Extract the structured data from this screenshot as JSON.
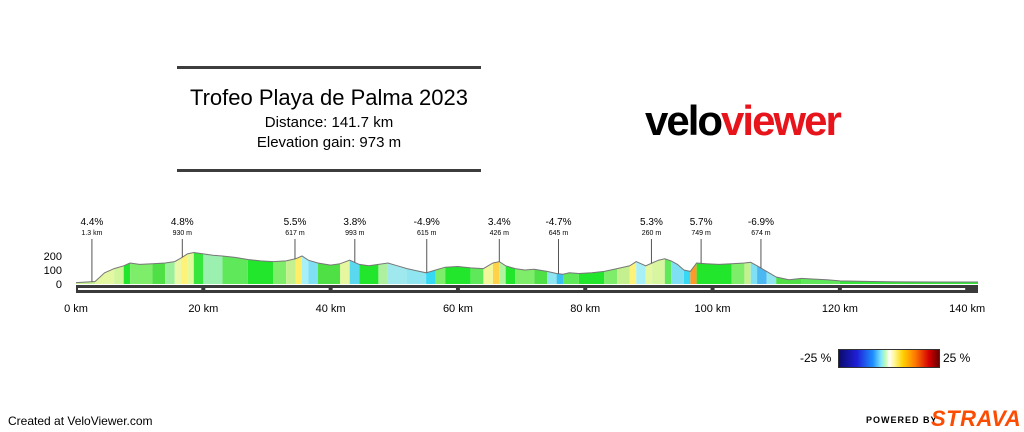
{
  "header": {
    "title": "Trofeo Playa de Palma 2023",
    "distance": "Distance: 141.7 km",
    "elevation_gain": "Elevation gain: 973 m"
  },
  "logo": {
    "part1": "velo",
    "part2": "viewer",
    "color_velo": "#000000",
    "color_viewer": "#e8141c"
  },
  "chart_data": {
    "type": "area",
    "x_unit": "km",
    "y_unit": "m",
    "xlim": [
      0,
      141.7
    ],
    "ylim": [
      0,
      250
    ],
    "x_ticks": [
      {
        "value": 0,
        "label": "0 km"
      },
      {
        "value": 20,
        "label": "20 km"
      },
      {
        "value": 40,
        "label": "40 km"
      },
      {
        "value": 60,
        "label": "60 km"
      },
      {
        "value": 80,
        "label": "80 km"
      },
      {
        "value": 100,
        "label": "100 km"
      },
      {
        "value": 120,
        "label": "120 km"
      },
      {
        "value": 140,
        "label": "140 km"
      }
    ],
    "y_ticks": [
      {
        "value": 0,
        "label": "0"
      },
      {
        "value": 100,
        "label": "100"
      },
      {
        "value": 200,
        "label": "200"
      }
    ],
    "profile": [
      [
        0,
        10
      ],
      [
        3,
        18
      ],
      [
        4.5,
        80
      ],
      [
        6,
        110
      ],
      [
        7.5,
        130
      ],
      [
        8.5,
        150
      ],
      [
        10,
        140
      ],
      [
        12,
        145
      ],
      [
        14,
        150
      ],
      [
        15.5,
        160
      ],
      [
        16.5,
        185
      ],
      [
        17.5,
        215
      ],
      [
        18.5,
        225
      ],
      [
        20,
        215
      ],
      [
        21.5,
        205
      ],
      [
        23,
        200
      ],
      [
        25,
        190
      ],
      [
        27,
        175
      ],
      [
        29,
        165
      ],
      [
        31,
        160
      ],
      [
        33,
        165
      ],
      [
        34.5,
        180
      ],
      [
        35.5,
        200
      ],
      [
        36.5,
        170
      ],
      [
        38,
        150
      ],
      [
        40,
        135
      ],
      [
        41.5,
        145
      ],
      [
        43,
        170
      ],
      [
        44.5,
        140
      ],
      [
        46,
        130
      ],
      [
        47.5,
        140
      ],
      [
        49,
        150
      ],
      [
        50.5,
        130
      ],
      [
        52,
        110
      ],
      [
        53.5,
        95
      ],
      [
        55,
        80
      ],
      [
        56.5,
        100
      ],
      [
        58,
        120
      ],
      [
        60,
        125
      ],
      [
        62,
        115
      ],
      [
        64,
        110
      ],
      [
        65.5,
        150
      ],
      [
        66.5,
        160
      ],
      [
        67.5,
        130
      ],
      [
        69,
        110
      ],
      [
        70.5,
        100
      ],
      [
        72,
        105
      ],
      [
        74,
        90
      ],
      [
        75.5,
        75
      ],
      [
        76.5,
        70
      ],
      [
        77.5,
        80
      ],
      [
        79,
        75
      ],
      [
        81,
        80
      ],
      [
        83,
        90
      ],
      [
        85,
        110
      ],
      [
        87,
        130
      ],
      [
        88,
        160
      ],
      [
        89.5,
        130
      ],
      [
        90.5,
        150
      ],
      [
        91.5,
        170
      ],
      [
        92.5,
        180
      ],
      [
        93.5,
        165
      ],
      [
        94.5,
        140
      ],
      [
        95.5,
        100
      ],
      [
        96.5,
        90
      ],
      [
        97.5,
        150
      ],
      [
        99,
        145
      ],
      [
        101,
        140
      ],
      [
        103,
        145
      ],
      [
        105,
        150
      ],
      [
        106,
        155
      ],
      [
        107,
        130
      ],
      [
        108.5,
        90
      ],
      [
        110,
        50
      ],
      [
        112,
        30
      ],
      [
        114,
        40
      ],
      [
        116,
        35
      ],
      [
        118,
        30
      ],
      [
        120,
        22
      ],
      [
        125,
        18
      ],
      [
        130,
        15
      ],
      [
        135,
        14
      ],
      [
        141.7,
        14
      ]
    ],
    "segments": [
      [
        0,
        3,
        "#c4f08f"
      ],
      [
        3,
        6,
        "#e4f8a2"
      ],
      [
        6,
        7.5,
        "#d0f59a"
      ],
      [
        7.5,
        8.5,
        "#22e62b"
      ],
      [
        8.5,
        12,
        "#7ded6a"
      ],
      [
        12,
        14,
        "#4fe046"
      ],
      [
        14,
        15.5,
        "#9af09a"
      ],
      [
        15.5,
        16.5,
        "#e8f8a6"
      ],
      [
        16.5,
        17.5,
        "#fff27a"
      ],
      [
        17.5,
        18.5,
        "#e0fa9c"
      ],
      [
        18.5,
        20,
        "#36e63a"
      ],
      [
        20,
        23,
        "#9bf0b0"
      ],
      [
        23,
        27,
        "#5fe85a"
      ],
      [
        27,
        31,
        "#22e62b"
      ],
      [
        31,
        33,
        "#7ded6a"
      ],
      [
        33,
        34.5,
        "#c4f08f"
      ],
      [
        34.5,
        35.5,
        "#ffee66"
      ],
      [
        35.5,
        36.5,
        "#a8f0f8"
      ],
      [
        36.5,
        38,
        "#7fe0f4"
      ],
      [
        38,
        41.5,
        "#4fe046"
      ],
      [
        41.5,
        43,
        "#e6f7a0"
      ],
      [
        43,
        44.5,
        "#5ad8f0"
      ],
      [
        44.5,
        47.5,
        "#22e62b"
      ],
      [
        47.5,
        49,
        "#aef0a0"
      ],
      [
        49,
        52,
        "#9fe8ee"
      ],
      [
        52,
        55,
        "#8fe6f0"
      ],
      [
        55,
        56.5,
        "#36d8f4"
      ],
      [
        56.5,
        58,
        "#7ded6a"
      ],
      [
        58,
        62,
        "#22e62b"
      ],
      [
        62,
        64,
        "#5fe85a"
      ],
      [
        64,
        65.5,
        "#f2f79c"
      ],
      [
        65.5,
        66.5,
        "#ffd24a"
      ],
      [
        66.5,
        67.5,
        "#b0f4a0"
      ],
      [
        67.5,
        69,
        "#22e62b"
      ],
      [
        69,
        72,
        "#7ded6a"
      ],
      [
        72,
        74,
        "#4fe046"
      ],
      [
        74,
        75.5,
        "#8fe6f0"
      ],
      [
        75.5,
        76.5,
        "#3ac0f0"
      ],
      [
        76.5,
        79,
        "#5fe85a"
      ],
      [
        79,
        83,
        "#22e62b"
      ],
      [
        83,
        85,
        "#7ded6a"
      ],
      [
        85,
        87,
        "#c4f08f"
      ],
      [
        87,
        88,
        "#fff27a"
      ],
      [
        88,
        89.5,
        "#a8f0f8"
      ],
      [
        89.5,
        90.5,
        "#e4f8a2"
      ],
      [
        90.5,
        92.5,
        "#d8f5a0"
      ],
      [
        92.5,
        93.5,
        "#5fe85a"
      ],
      [
        93.5,
        95.5,
        "#7fe0f4"
      ],
      [
        95.5,
        96.5,
        "#36d8f4"
      ],
      [
        96.5,
        97.5,
        "#ff9a2a"
      ],
      [
        97.5,
        103,
        "#22e62b"
      ],
      [
        103,
        105,
        "#7ded6a"
      ],
      [
        105,
        106,
        "#c4f08f"
      ],
      [
        106,
        107,
        "#7fe0f4"
      ],
      [
        107,
        108.5,
        "#4cb8f2"
      ],
      [
        108.5,
        110,
        "#8fe6f0"
      ],
      [
        110,
        114,
        "#4fe046"
      ],
      [
        114,
        120,
        "#5fe85a"
      ],
      [
        120,
        141.7,
        "#36e63a"
      ]
    ],
    "annotations": [
      {
        "km": 2.5,
        "grade": "4.4%",
        "length": "1.3 km"
      },
      {
        "km": 16.7,
        "grade": "4.8%",
        "length": "930 m"
      },
      {
        "km": 34.4,
        "grade": "5.5%",
        "length": "617 m"
      },
      {
        "km": 43.8,
        "grade": "3.8%",
        "length": "993 m"
      },
      {
        "km": 55.1,
        "grade": "-4.9%",
        "length": "615 m"
      },
      {
        "km": 66.5,
        "grade": "3.4%",
        "length": "426 m"
      },
      {
        "km": 75.8,
        "grade": "-4.7%",
        "length": "645 m"
      },
      {
        "km": 90.4,
        "grade": "5.3%",
        "length": "260 m"
      },
      {
        "km": 98.2,
        "grade": "5.7%",
        "length": "749 m"
      },
      {
        "km": 107.6,
        "grade": "-6.9%",
        "length": "674 m"
      }
    ],
    "colors": {
      "base_bar": "#3a3a3a",
      "tick_white": "#ffffff",
      "outline": "#777777"
    }
  },
  "legend": {
    "min_label": "-25 %",
    "max_label": "25 %"
  },
  "footer": {
    "created": "Created at VeloViewer.com",
    "powered": "POWERED BY",
    "strava": "STRAVA"
  }
}
